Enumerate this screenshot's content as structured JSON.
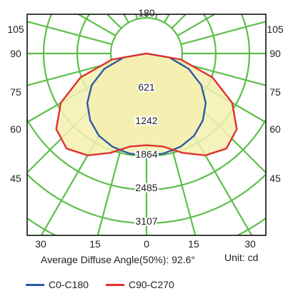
{
  "chart_data": {
    "type": "polar",
    "top_label": "180",
    "angle_labels_left": [
      "105",
      "90",
      "75",
      "60",
      "45"
    ],
    "angle_labels_right": [
      "105",
      "90",
      "75",
      "60",
      "45"
    ],
    "bottom_labels": [
      "30",
      "15",
      "0",
      "15",
      "30"
    ],
    "radial_labels": [
      "621",
      "1242",
      "1864",
      "2485",
      "3107"
    ],
    "radial_max": 3107,
    "grid_color": "#5cbf4a",
    "fill_color": "#f4f0b0",
    "series": [
      {
        "name": "C0-C180",
        "color": "#2b5aa6",
        "angles": [
          0,
          10,
          20,
          30,
          40,
          50,
          60,
          70,
          80,
          90
        ],
        "values": [
          1900,
          1880,
          1840,
          1760,
          1620,
          1430,
          1170,
          830,
          430,
          0
        ]
      },
      {
        "name": "C90-C270",
        "color": "#e0302f",
        "angles": [
          0,
          10,
          20,
          30,
          40,
          50,
          60,
          70,
          80,
          90
        ],
        "values": [
          1700,
          1750,
          1960,
          2180,
          2300,
          2180,
          1830,
          1300,
          650,
          0
        ]
      }
    ],
    "caption": "Average Diffuse Angle(50%): 92.6",
    "caption_unit_mark": "°",
    "unit_label": "Unit: cd"
  }
}
